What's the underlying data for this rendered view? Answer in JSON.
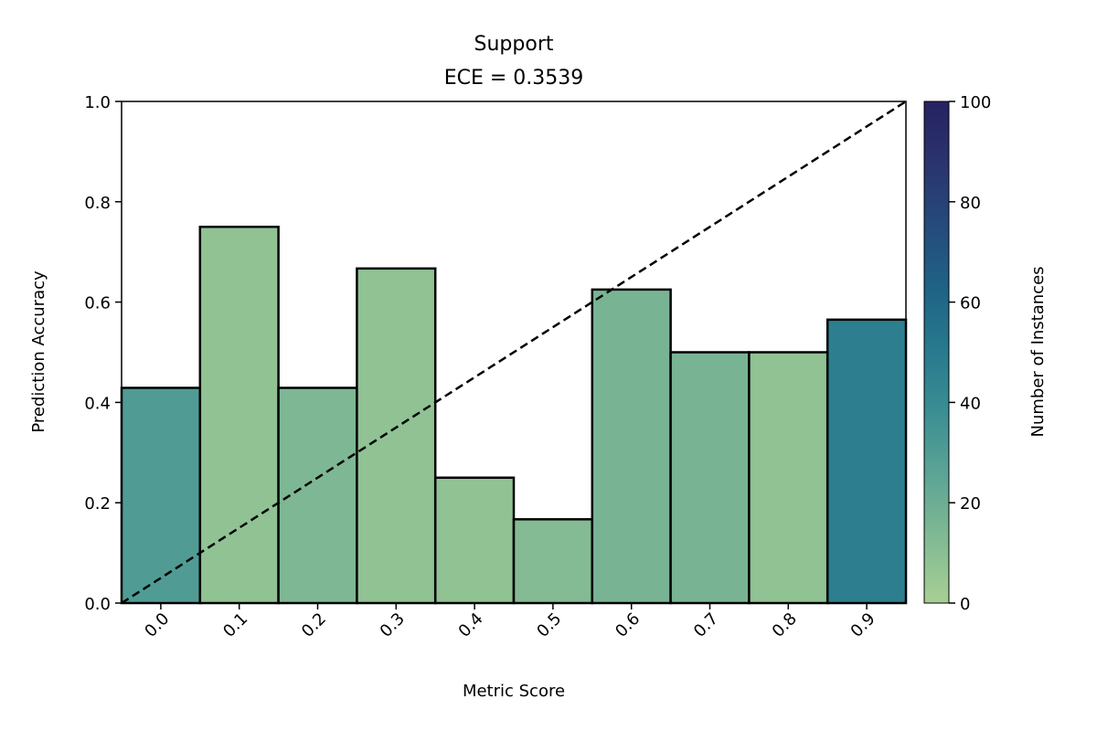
{
  "chart_data": {
    "type": "bar",
    "title": "Support",
    "subtitle": "ECE = 0.3539",
    "xlabel": "Metric Score",
    "ylabel": "Prediction Accuracy",
    "categories": [
      "0.0",
      "0.1",
      "0.2",
      "0.3",
      "0.4",
      "0.5",
      "0.6",
      "0.7",
      "0.8",
      "0.9"
    ],
    "x": [
      0.0,
      0.1,
      0.2,
      0.3,
      0.4,
      0.5,
      0.6,
      0.7,
      0.8,
      0.9
    ],
    "values": [
      0.429,
      0.75,
      0.429,
      0.667,
      0.25,
      0.167,
      0.625,
      0.5,
      0.5,
      0.565
    ],
    "counts": [
      30,
      8,
      14,
      8,
      8,
      12,
      16,
      16,
      8,
      47
    ],
    "xlim": [
      -0.05,
      0.95
    ],
    "ylim": [
      0,
      1.0
    ],
    "yticks": [
      "0.0",
      "0.2",
      "0.4",
      "0.6",
      "0.8",
      "1.0"
    ],
    "reference_line": {
      "style": "dashed",
      "from": [
        -0.05,
        0.0
      ],
      "to": [
        0.95,
        1.0
      ],
      "color": "#000000"
    },
    "bar_edge_color": "#000000",
    "colorbar": {
      "label": "Number of Instances",
      "range": [
        0,
        100
      ],
      "ticks": [
        "0",
        "20",
        "40",
        "60",
        "80",
        "100"
      ],
      "colors": [
        "#a8cf93",
        "#82ba94",
        "#5ea595",
        "#3c8f93",
        "#287a8e",
        "#1f6386",
        "#254b7c",
        "#2a346f",
        "#262262"
      ]
    },
    "grid": false
  }
}
